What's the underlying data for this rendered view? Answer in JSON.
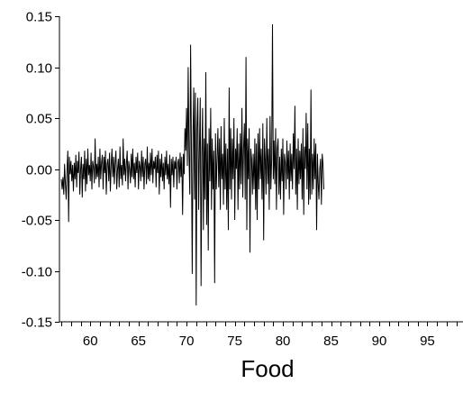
{
  "chart_data": {
    "type": "line",
    "title": "",
    "xlabel": "Food",
    "ylabel": "",
    "xlim": [
      1956.8,
      1998.7
    ],
    "ylim": [
      -0.15,
      0.15
    ],
    "grid": false,
    "legend": "none",
    "x_ticks": [
      {
        "value": 1960,
        "label": "60"
      },
      {
        "value": 1965,
        "label": "65"
      },
      {
        "value": 1970,
        "label": "70"
      },
      {
        "value": 1975,
        "label": "75"
      },
      {
        "value": 1980,
        "label": "80"
      },
      {
        "value": 1985,
        "label": "85"
      },
      {
        "value": 1990,
        "label": "90"
      },
      {
        "value": 1995,
        "label": "95"
      }
    ],
    "y_ticks": [
      {
        "value": 0.15,
        "label": "0.15"
      },
      {
        "value": 0.1,
        "label": "0.10"
      },
      {
        "value": 0.05,
        "label": "0.05"
      },
      {
        "value": 0.0,
        "label": "0.00"
      },
      {
        "value": -0.05,
        "label": "-0.05"
      },
      {
        "value": -0.1,
        "label": "-0.10"
      },
      {
        "value": -0.15,
        "label": "-0.15"
      }
    ],
    "line_color": "#000000",
    "series": [
      {
        "x_start": 1957.0,
        "x_step": 0.08333,
        "values": [
          -0.01,
          -0.02,
          -0.008,
          -0.025,
          0.005,
          -0.015,
          -0.03,
          0.0,
          0.018,
          -0.052,
          0.012,
          -0.005,
          0.008,
          -0.012,
          0.004,
          -0.022,
          0.006,
          -0.01,
          0.014,
          -0.018,
          0.008,
          -0.004,
          0.017,
          -0.025,
          0.0,
          0.012,
          -0.028,
          0.005,
          -0.01,
          0.018,
          -0.022,
          0.01,
          -0.015,
          0.02,
          -0.006,
          0.004,
          -0.012,
          0.016,
          -0.02,
          0.008,
          0.002,
          -0.014,
          0.03,
          -0.01,
          0.005,
          -0.008,
          0.012,
          -0.018,
          0.02,
          -0.01,
          0.006,
          0.014,
          -0.02,
          0.012,
          -0.004,
          0.018,
          -0.025,
          0.005,
          0.01,
          -0.012,
          0.016,
          -0.022,
          0.004,
          0.02,
          -0.008,
          0.012,
          -0.015,
          0.006,
          0.018,
          -0.02,
          0.0,
          0.01,
          -0.018,
          0.022,
          -0.01,
          0.004,
          -0.016,
          0.03,
          -0.006,
          0.01,
          -0.012,
          0.005,
          0.018,
          -0.02,
          0.008,
          0.0,
          -0.014,
          0.015,
          -0.008,
          0.02,
          -0.01,
          0.006,
          -0.018,
          0.012,
          -0.004,
          0.016,
          -0.02,
          0.008,
          0.002,
          -0.012,
          0.018,
          -0.008,
          0.012,
          -0.02,
          0.005,
          0.01,
          -0.015,
          0.022,
          -0.01,
          0.006,
          -0.012,
          0.016,
          -0.006,
          0.02,
          -0.014,
          0.008,
          0.0,
          0.012,
          -0.018,
          0.014,
          -0.004,
          0.018,
          -0.025,
          0.01,
          -0.008,
          0.015,
          -0.012,
          0.006,
          -0.02,
          0.012,
          -0.006,
          0.018,
          -0.01,
          0.005,
          -0.015,
          0.014,
          -0.038,
          0.01,
          -0.006,
          0.012,
          -0.018,
          0.008,
          0.0,
          0.012,
          -0.02,
          0.006,
          0.01,
          -0.014,
          0.016,
          -0.008,
          0.012,
          -0.045,
          0.015,
          -0.005,
          0.04,
          0.018,
          0.06,
          0.003,
          0.1,
          0.015,
          -0.025,
          0.122,
          0.02,
          -0.103,
          0.035,
          0.08,
          -0.03,
          0.075,
          -0.134,
          0.04,
          0.07,
          -0.04,
          0.02,
          0.07,
          -0.115,
          0.015,
          0.06,
          -0.06,
          0.03,
          -0.03,
          0.095,
          -0.055,
          0.025,
          -0.08,
          0.04,
          -0.012,
          0.06,
          -0.04,
          0.03,
          -0.02,
          0.018,
          -0.112,
          0.035,
          -0.02,
          0.01,
          0.04,
          -0.018,
          0.03,
          -0.04,
          0.042,
          -0.01,
          0.015,
          -0.035,
          0.05,
          -0.02,
          0.025,
          -0.04,
          0.02,
          -0.06,
          0.08,
          -0.02,
          0.04,
          -0.03,
          0.03,
          -0.01,
          0.05,
          -0.05,
          0.02,
          0.0,
          0.04,
          -0.04,
          0.025,
          -0.02,
          0.035,
          -0.015,
          0.06,
          -0.028,
          0.02,
          0.045,
          -0.03,
          0.11,
          -0.06,
          0.03,
          -0.01,
          0.04,
          -0.082,
          0.02,
          0.01,
          -0.025,
          0.015,
          -0.02,
          0.03,
          -0.04,
          0.025,
          -0.05,
          0.035,
          -0.02,
          0.04,
          -0.01,
          0.02,
          -0.03,
          0.045,
          -0.07,
          0.03,
          0.01,
          -0.025,
          0.05,
          -0.015,
          0.02,
          -0.04,
          0.052,
          -0.02,
          0.01,
          0.142,
          -0.01,
          0.028,
          -0.015,
          0.04,
          -0.04,
          0.02,
          0.03,
          -0.025,
          0.012,
          -0.03,
          0.02,
          -0.012,
          0.03,
          -0.045,
          0.015,
          0.006,
          -0.02,
          0.028,
          -0.01,
          0.018,
          -0.03,
          0.025,
          -0.012,
          0.015,
          -0.02,
          0.035,
          0.0,
          0.062,
          -0.025,
          0.02,
          -0.04,
          0.03,
          -0.015,
          0.018,
          -0.01,
          0.025,
          -0.03,
          0.04,
          -0.045,
          0.022,
          0.0,
          0.055,
          -0.02,
          0.045,
          -0.035,
          0.02,
          -0.03,
          0.078,
          -0.025,
          0.015,
          -0.02,
          0.03,
          -0.01,
          0.025,
          -0.06,
          0.015,
          -0.015,
          -0.03,
          0.0,
          0.01,
          -0.035,
          0.015,
          0.005,
          -0.02
        ]
      }
    ]
  }
}
